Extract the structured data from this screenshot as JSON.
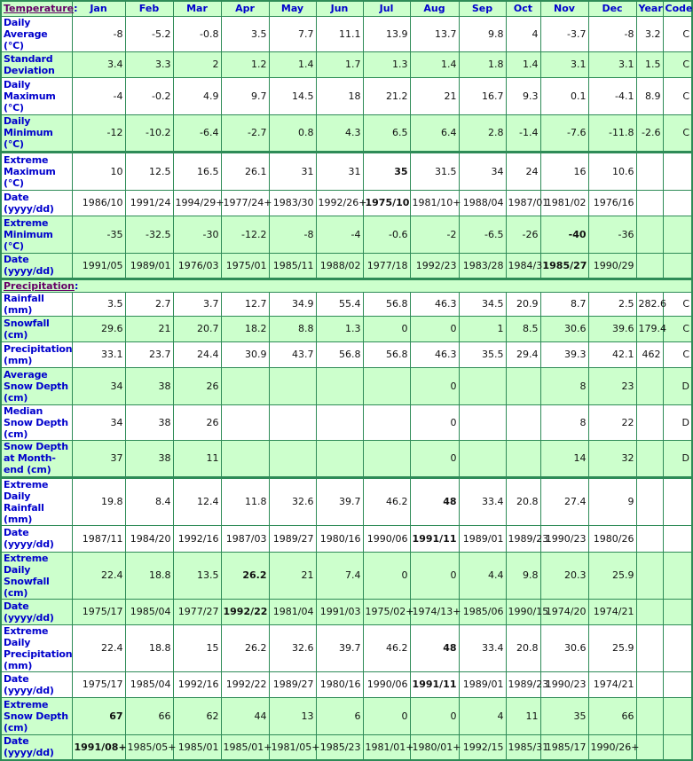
{
  "headers": {
    "temperature": "Temperature",
    "colon": ":",
    "precipitation": "Precipitation",
    "columns": [
      "Jan",
      "Feb",
      "Mar",
      "Apr",
      "May",
      "Jun",
      "Jul",
      "Aug",
      "Sep",
      "Oct",
      "Nov",
      "Dec",
      "Year",
      "Code"
    ]
  },
  "colors": {
    "border": "#2e8b57",
    "row_alt": "#ccffcc",
    "label": "#0000cc",
    "section": "#660066"
  },
  "temperature_rows": [
    {
      "label": "Daily Average (°C)",
      "values": [
        "-8",
        "-5.2",
        "-0.8",
        "3.5",
        "7.7",
        "11.1",
        "13.9",
        "13.7",
        "9.8",
        "4",
        "-3.7",
        "-8",
        "3.2",
        "C"
      ],
      "bold": [],
      "shade": "w"
    },
    {
      "label": "Standard Deviation",
      "values": [
        "3.4",
        "3.3",
        "2",
        "1.2",
        "1.4",
        "1.7",
        "1.3",
        "1.4",
        "1.8",
        "1.4",
        "3.1",
        "3.1",
        "1.5",
        "C"
      ],
      "bold": [],
      "shade": "g"
    },
    {
      "label": "Daily Maximum (°C)",
      "values": [
        "-4",
        "-0.2",
        "4.9",
        "9.7",
        "14.5",
        "18",
        "21.2",
        "21",
        "16.7",
        "9.3",
        "0.1",
        "-4.1",
        "8.9",
        "C"
      ],
      "bold": [],
      "shade": "w"
    },
    {
      "label": "Daily Minimum (°C)",
      "values": [
        "-12",
        "-10.2",
        "-6.4",
        "-2.7",
        "0.8",
        "4.3",
        "6.5",
        "6.4",
        "2.8",
        "-1.4",
        "-7.6",
        "-11.8",
        "-2.6",
        "C"
      ],
      "bold": [],
      "shade": "g"
    },
    {
      "label": "Extreme Maximum (°C)",
      "values": [
        "10",
        "12.5",
        "16.5",
        "26.1",
        "31",
        "31",
        "35",
        "31.5",
        "34",
        "24",
        "16",
        "10.6",
        "",
        ""
      ],
      "bold": [
        6
      ],
      "shade": "w",
      "sep": true
    },
    {
      "label": "Date (yyyy/dd)",
      "values": [
        "1986/10",
        "1991/24",
        "1994/29+",
        "1977/24+",
        "1983/30",
        "1992/26+",
        "1975/10",
        "1981/10+",
        "1988/04",
        "1987/01",
        "1981/02",
        "1976/16",
        "",
        ""
      ],
      "bold": [
        6
      ],
      "shade": "w"
    },
    {
      "label": "Extreme Minimum (°C)",
      "values": [
        "-35",
        "-32.5",
        "-30",
        "-12.2",
        "-8",
        "-4",
        "-0.6",
        "-2",
        "-6.5",
        "-26",
        "-40",
        "-36",
        "",
        ""
      ],
      "bold": [
        10
      ],
      "shade": "g"
    },
    {
      "label": "Date (yyyy/dd)",
      "values": [
        "1991/05",
        "1989/01",
        "1976/03",
        "1975/01",
        "1985/11",
        "1988/02",
        "1977/18",
        "1992/23",
        "1983/28",
        "1984/31",
        "1985/27",
        "1990/29",
        "",
        ""
      ],
      "bold": [
        10
      ],
      "shade": "g"
    }
  ],
  "precipitation_rows": [
    {
      "label": "Rainfall (mm)",
      "values": [
        "3.5",
        "2.7",
        "3.7",
        "12.7",
        "34.9",
        "55.4",
        "56.8",
        "46.3",
        "34.5",
        "20.9",
        "8.7",
        "2.5",
        "282.6",
        "C"
      ],
      "bold": [],
      "shade": "w"
    },
    {
      "label": "Snowfall (cm)",
      "values": [
        "29.6",
        "21",
        "20.7",
        "18.2",
        "8.8",
        "1.3",
        "0",
        "0",
        "1",
        "8.5",
        "30.6",
        "39.6",
        "179.4",
        "C"
      ],
      "bold": [],
      "shade": "g"
    },
    {
      "label": "Precipitation (mm)",
      "values": [
        "33.1",
        "23.7",
        "24.4",
        "30.9",
        "43.7",
        "56.8",
        "56.8",
        "46.3",
        "35.5",
        "29.4",
        "39.3",
        "42.1",
        "462",
        "C"
      ],
      "bold": [],
      "shade": "w"
    },
    {
      "label": "Average Snow Depth (cm)",
      "values": [
        "34",
        "38",
        "26",
        "",
        "",
        "",
        "",
        "0",
        "",
        "",
        "8",
        "23",
        "",
        "D"
      ],
      "bold": [],
      "shade": "g"
    },
    {
      "label": "Median Snow Depth (cm)",
      "values": [
        "34",
        "38",
        "26",
        "",
        "",
        "",
        "",
        "0",
        "",
        "",
        "8",
        "22",
        "",
        "D"
      ],
      "bold": [],
      "shade": "w"
    },
    {
      "label": "Snow Depth at Month-end (cm)",
      "values": [
        "37",
        "38",
        "11",
        "",
        "",
        "",
        "",
        "0",
        "",
        "",
        "14",
        "32",
        "",
        "D"
      ],
      "bold": [],
      "shade": "g"
    },
    {
      "label": "Extreme Daily Rainfall (mm)",
      "values": [
        "19.8",
        "8.4",
        "12.4",
        "11.8",
        "32.6",
        "39.7",
        "46.2",
        "48",
        "33.4",
        "20.8",
        "27.4",
        "9",
        "",
        ""
      ],
      "bold": [
        7
      ],
      "shade": "w",
      "sep": true
    },
    {
      "label": "Date (yyyy/dd)",
      "values": [
        "1987/11",
        "1984/20",
        "1992/16",
        "1987/03",
        "1989/27",
        "1980/16",
        "1990/06",
        "1991/11",
        "1989/01",
        "1989/23",
        "1990/23",
        "1980/26",
        "",
        ""
      ],
      "bold": [
        7
      ],
      "shade": "w"
    },
    {
      "label": "Extreme Daily Snowfall (cm)",
      "values": [
        "22.4",
        "18.8",
        "13.5",
        "26.2",
        "21",
        "7.4",
        "0",
        "0",
        "4.4",
        "9.8",
        "20.3",
        "25.9",
        "",
        ""
      ],
      "bold": [
        3
      ],
      "shade": "g"
    },
    {
      "label": "Date (yyyy/dd)",
      "values": [
        "1975/17",
        "1985/04",
        "1977/27",
        "1992/22",
        "1981/04",
        "1991/03",
        "1975/02+",
        "1974/13+",
        "1985/06",
        "1990/15",
        "1974/20",
        "1974/21",
        "",
        ""
      ],
      "bold": [
        3
      ],
      "shade": "g"
    },
    {
      "label": "Extreme Daily Precipitation (mm)",
      "values": [
        "22.4",
        "18.8",
        "15",
        "26.2",
        "32.6",
        "39.7",
        "46.2",
        "48",
        "33.4",
        "20.8",
        "30.6",
        "25.9",
        "",
        ""
      ],
      "bold": [
        7
      ],
      "shade": "w"
    },
    {
      "label": "Date (yyyy/dd)",
      "values": [
        "1975/17",
        "1985/04",
        "1992/16",
        "1992/22",
        "1989/27",
        "1980/16",
        "1990/06",
        "1991/11",
        "1989/01",
        "1989/23",
        "1990/23",
        "1974/21",
        "",
        ""
      ],
      "bold": [
        7
      ],
      "shade": "w"
    },
    {
      "label": "Extreme Snow Depth (cm)",
      "values": [
        "67",
        "66",
        "62",
        "44",
        "13",
        "6",
        "0",
        "0",
        "4",
        "11",
        "35",
        "66",
        "",
        ""
      ],
      "bold": [
        0
      ],
      "shade": "g"
    },
    {
      "label": "Date (yyyy/dd)",
      "values": [
        "1991/08+",
        "1985/05+",
        "1985/01",
        "1985/01+",
        "1981/05+",
        "1985/23",
        "1981/01+",
        "1980/01+",
        "1992/15",
        "1985/31",
        "1985/17",
        "1990/26+",
        "",
        ""
      ],
      "bold": [
        0
      ],
      "shade": "g"
    }
  ]
}
